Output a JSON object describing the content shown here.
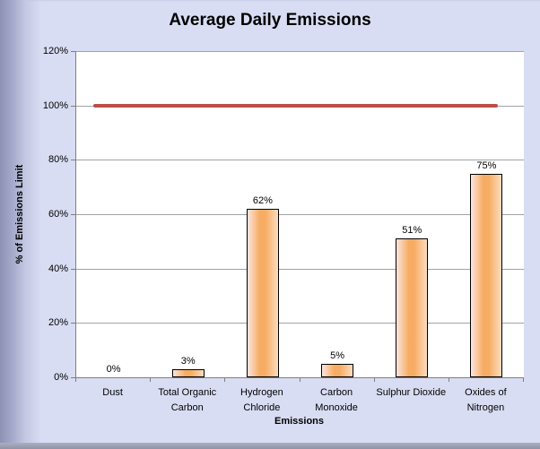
{
  "chart_data": {
    "type": "bar",
    "title": "Average Daily Emissions",
    "xlabel": "Emissions",
    "ylabel": "% of Emissions  Limit",
    "categories": [
      "Dust",
      "Total Organic Carbon",
      "Hydrogen Chloride",
      "Carbon Monoxide",
      "Sulphur Dioxide",
      "Oxides of Nitrogen"
    ],
    "values": [
      0,
      3,
      62,
      5,
      51,
      75
    ],
    "data_labels": [
      "0%",
      "3%",
      "62%",
      "5%",
      "51%",
      "75%"
    ],
    "ylim": [
      0,
      120
    ],
    "yticks": [
      0,
      20,
      40,
      60,
      80,
      100,
      120
    ],
    "ytick_labels": [
      "0%",
      "20%",
      "40%",
      "60%",
      "80%",
      "100%",
      "120%"
    ],
    "grid": true,
    "legend": "none",
    "limit_line": {
      "value": 100,
      "color": "#BE4C48"
    },
    "bar_style": {
      "outline": "#000000",
      "gradient_edge": "#FBE5DE",
      "gradient_center": "#F7AC63",
      "gradient_right": "#FBDCC0"
    },
    "colors": {
      "background": "#D9DDF3",
      "plot_background": "#FFFFFF",
      "gridline": "#A3A3A3",
      "axis": "#7F7F7F"
    }
  }
}
